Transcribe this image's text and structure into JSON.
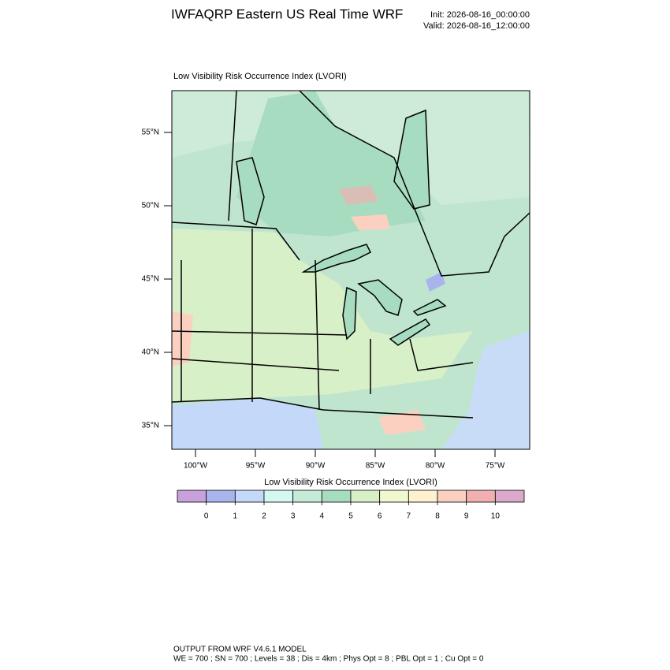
{
  "header": {
    "title": "IWFAQRP Eastern US Real Time WRF",
    "init": "Init: 2026-08-16_00:00:00",
    "valid": "Valid: 2026-08-16_12:00:00"
  },
  "map": {
    "title": "Low Visibility Risk Occurrence Index   (LVORI)",
    "lat_ticks": [
      {
        "value": 55,
        "label": "55°N"
      },
      {
        "value": 50,
        "label": "50°N"
      },
      {
        "value": 45,
        "label": "45°N"
      },
      {
        "value": 40,
        "label": "40°N"
      },
      {
        "value": 35,
        "label": "35°N"
      }
    ],
    "lon_ticks": [
      {
        "value": -100,
        "label": "100°W"
      },
      {
        "value": -95,
        "label": "95°W"
      },
      {
        "value": -90,
        "label": "90°W"
      },
      {
        "value": -85,
        "label": "85°W"
      },
      {
        "value": -80,
        "label": "80°W"
      },
      {
        "value": -75,
        "label": "75°W"
      }
    ]
  },
  "colorbar": {
    "title": "Low Visibility Risk Occurrence Index  (LVORI)",
    "colors": [
      "#c8a0dc",
      "#aab4ec",
      "#c4d8fa",
      "#d4f8f0",
      "#c4ecd8",
      "#a8dcc0",
      "#d8f0c8",
      "#f0f8d0",
      "#fff0d0",
      "#fcd0c0",
      "#f0b0b0",
      "#dca8cc"
    ],
    "ticks": [
      0,
      1,
      2,
      3,
      4,
      5,
      6,
      7,
      8,
      9,
      10
    ]
  },
  "footer": {
    "line1": "OUTPUT FROM WRF V4.6.1 MODEL",
    "line2": "WE = 700 ; SN = 700 ; Levels = 38 ; Dis = 4km ; Phys Opt = 8 ; PBL Opt = 1 ; Cu Opt = 0"
  }
}
